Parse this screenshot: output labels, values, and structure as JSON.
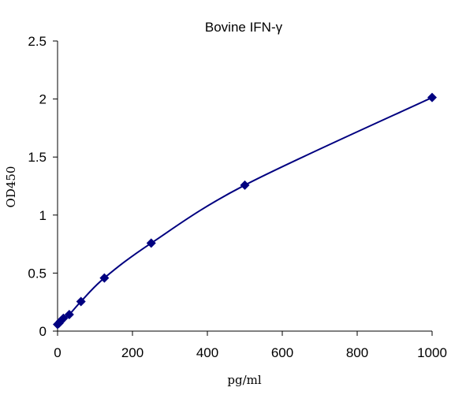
{
  "chart_data": {
    "type": "scatter",
    "title": "Bovine  IFN-γ",
    "xlabel": "pg/ml",
    "ylabel": "OD450",
    "xlim": [
      0,
      1000
    ],
    "ylim": [
      0,
      2.5
    ],
    "x_ticks": [
      0,
      200,
      400,
      600,
      800,
      1000
    ],
    "y_ticks": [
      0,
      0.5,
      1,
      1.5,
      2,
      2.5
    ],
    "x_tick_labels": [
      "0",
      "200",
      "400",
      "600",
      "800",
      "1000"
    ],
    "y_tick_labels": [
      "0",
      "0.5",
      "1",
      "1.5",
      "2",
      "2.5"
    ],
    "grid": false,
    "legend": "none",
    "series": [
      {
        "color": "#000080",
        "marker": "diamond",
        "line": "smooth",
        "x": [
          0,
          3.9,
          7.8,
          15.6,
          31.25,
          62.5,
          125,
          250,
          500,
          1000
        ],
        "y": [
          0.058,
          0.068,
          0.085,
          0.11,
          0.143,
          0.255,
          0.458,
          0.758,
          1.258,
          2.013
        ]
      }
    ]
  }
}
